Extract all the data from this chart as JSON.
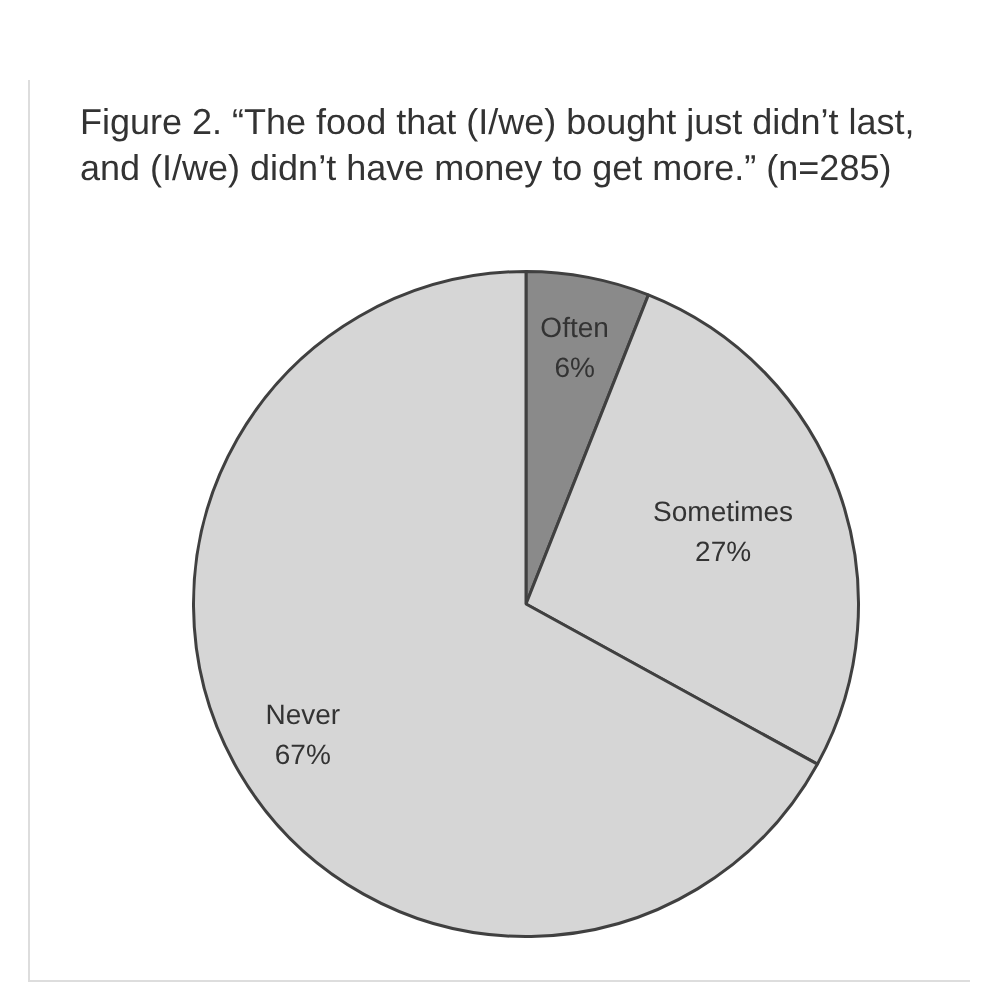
{
  "chart_data": {
    "type": "pie",
    "title": "Figure 2. “The food that (I/we) bought just didn’t last, and (I/we) didn’t have money to get more.” (n=285)",
    "categories": [
      "Often",
      "Sometimes",
      "Never"
    ],
    "values": [
      6,
      27,
      67
    ],
    "colors": [
      "#8a8a8a",
      "#d6d6d6",
      "#d6d6d6"
    ],
    "value_labels": [
      "6%",
      "27%",
      "67%"
    ],
    "legend": false
  }
}
